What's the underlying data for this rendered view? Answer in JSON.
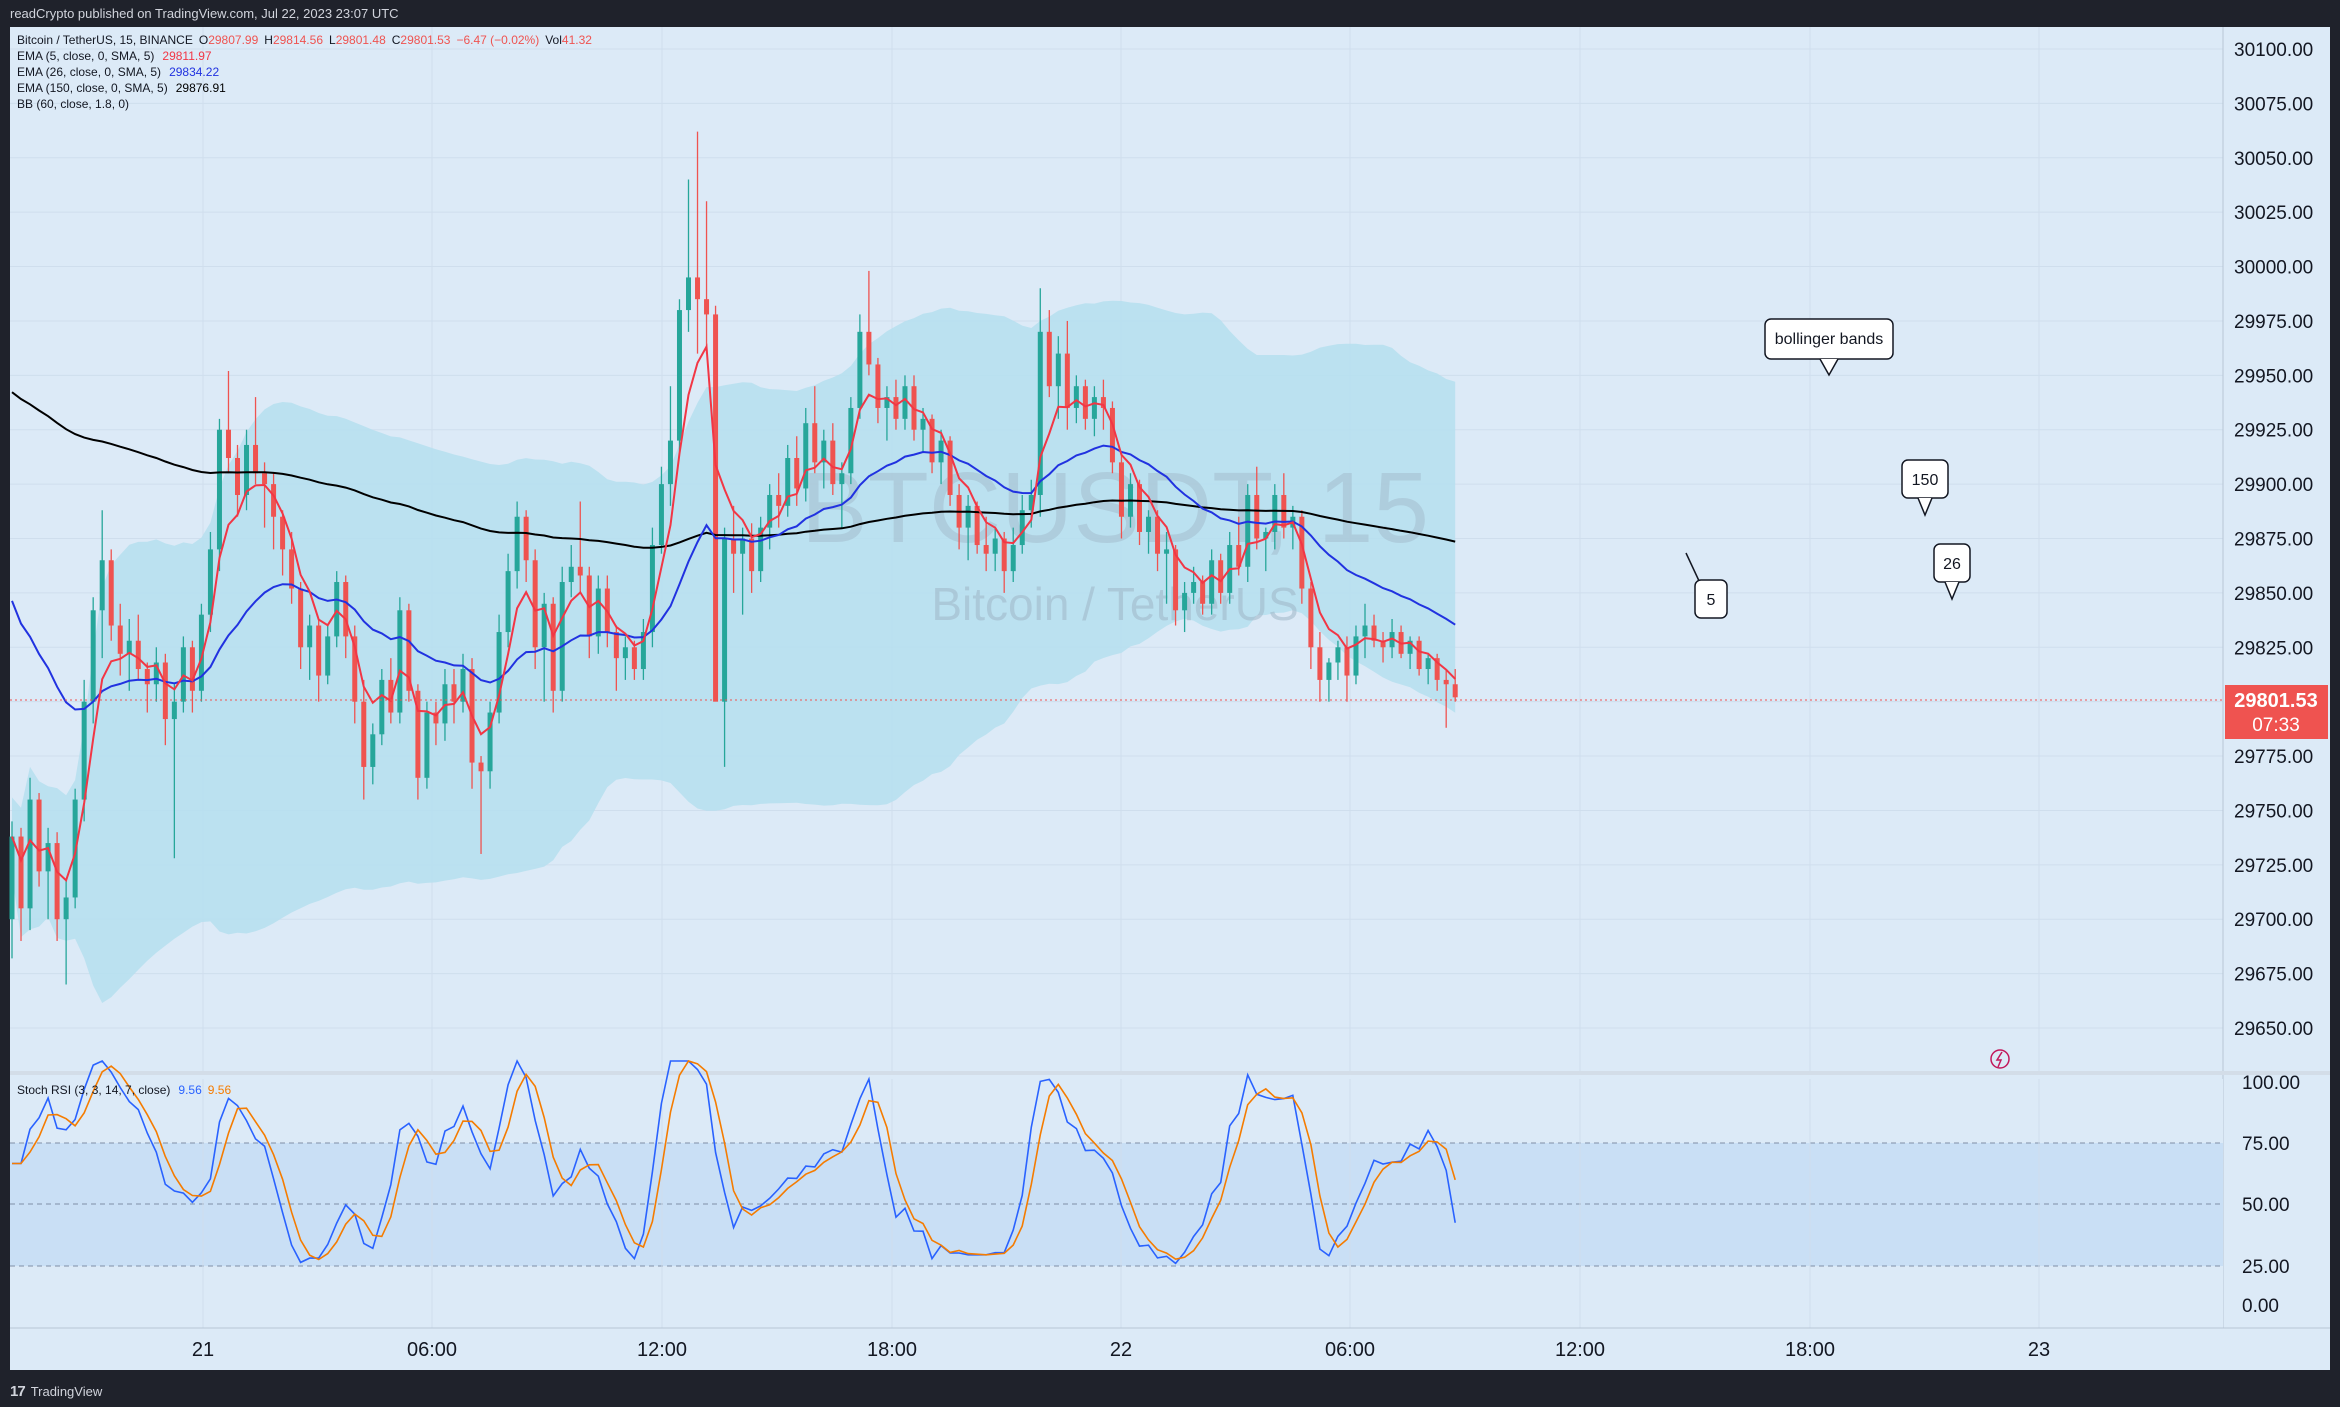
{
  "header": {
    "publisher": "readCrypto published on TradingView.com, Jul 22, 2023 23:07 UTC"
  },
  "footer": {
    "brand": "TradingView"
  },
  "colors": {
    "up": "#26a69a",
    "down": "#ef5350",
    "ema5": "#f23645",
    "ema26": "#2132e0",
    "ema150": "#000000",
    "stoch_k": "#2962ff",
    "stoch_d": "#f57c00",
    "band": "#b5dfee",
    "bg": "#dceaf7"
  },
  "legend": {
    "symbol": "Bitcoin / TetherUS, 15, BINANCE",
    "o_label": "O",
    "o": "29807.99",
    "h_label": "H",
    "h": "29814.56",
    "l_label": "L",
    "l": "29801.48",
    "c_label": "C",
    "c": "29801.53",
    "chg": "−6.47 (−0.02%)",
    "vol_label": "Vol",
    "vol": "41.32",
    "ema5_label": "EMA (5, close, 0, SMA, 5)",
    "ema5": "29811.97",
    "ema26_label": "EMA (26, close, 0, SMA, 5)",
    "ema26": "29834.22",
    "ema150_label": "EMA (150, close, 0, SMA, 5)",
    "ema150": "29876.91",
    "bb_label": "BB (60, close, 1.8, 0)",
    "stoch_label": "Stoch RSI (3, 3, 14, 7, close)",
    "stoch_k": "9.56",
    "stoch_d": "9.56"
  },
  "watermark": {
    "ticker": "BTCUSDT, 15",
    "name": "Bitcoin / TetherUS"
  },
  "annotations": {
    "bb": "bollinger bands",
    "e150": "150",
    "e26": "26",
    "e5": "5"
  },
  "price_tag": {
    "price": "29801.53",
    "countdown": "07:33"
  },
  "chart_data": {
    "type": "candlestick",
    "price_axis": {
      "min": 29650,
      "max": 30100,
      "ticks": [
        "30100.00",
        "30075.00",
        "30050.00",
        "30025.00",
        "30000.00",
        "29975.00",
        "29950.00",
        "29925.00",
        "29900.00",
        "29875.00",
        "29850.00",
        "29825.00",
        "29800.00",
        "29775.00",
        "29750.00",
        "29725.00",
        "29700.00",
        "29675.00",
        "29650.00"
      ]
    },
    "time_axis": {
      "ticks": [
        "21",
        "06:00",
        "12:00",
        "18:00",
        "22",
        "06:00",
        "12:00",
        "18:00",
        "23"
      ]
    },
    "candles_ohlc": [
      [
        29700,
        29745,
        29682,
        29738
      ],
      [
        29738,
        29742,
        29690,
        29705
      ],
      [
        29705,
        29765,
        29695,
        29755
      ],
      [
        29755,
        29758,
        29715,
        29722
      ],
      [
        29722,
        29742,
        29700,
        29735
      ],
      [
        29735,
        29740,
        29690,
        29700
      ],
      [
        29700,
        29718,
        29670,
        29710
      ],
      [
        29710,
        29760,
        29705,
        29755
      ],
      [
        29755,
        29810,
        29745,
        29800
      ],
      [
        29800,
        29848,
        29790,
        29842
      ],
      [
        29842,
        29888,
        29820,
        29865
      ],
      [
        29865,
        29870,
        29828,
        29835
      ],
      [
        29835,
        29845,
        29812,
        29822
      ],
      [
        29822,
        29838,
        29805,
        29828
      ],
      [
        29828,
        29840,
        29810,
        29815
      ],
      [
        29815,
        29818,
        29795,
        29808
      ],
      [
        29808,
        29825,
        29800,
        29818
      ],
      [
        29818,
        29822,
        29780,
        29792
      ],
      [
        29792,
        29808,
        29728,
        29800
      ],
      [
        29800,
        29830,
        29795,
        29825
      ],
      [
        29825,
        29828,
        29795,
        29805
      ],
      [
        29805,
        29845,
        29800,
        29840
      ],
      [
        29840,
        29878,
        29832,
        29870
      ],
      [
        29870,
        29930,
        29860,
        29925
      ],
      [
        29925,
        29952,
        29905,
        29912
      ],
      [
        29912,
        29918,
        29885,
        29895
      ],
      [
        29895,
        29925,
        29888,
        29918
      ],
      [
        29918,
        29940,
        29900,
        29905
      ],
      [
        29905,
        29910,
        29880,
        29900
      ],
      [
        29900,
        29905,
        29870,
        29885
      ],
      [
        29885,
        29888,
        29858,
        29870
      ],
      [
        29870,
        29878,
        29845,
        29852
      ],
      [
        29852,
        29855,
        29815,
        29825
      ],
      [
        29825,
        29840,
        29810,
        29835
      ],
      [
        29835,
        29838,
        29800,
        29812
      ],
      [
        29812,
        29835,
        29808,
        29830
      ],
      [
        29830,
        29860,
        29825,
        29855
      ],
      [
        29855,
        29858,
        29820,
        29830
      ],
      [
        29830,
        29835,
        29790,
        29800
      ],
      [
        29800,
        29810,
        29755,
        29770
      ],
      [
        29770,
        29790,
        29762,
        29785
      ],
      [
        29785,
        29815,
        29780,
        29810
      ],
      [
        29810,
        29820,
        29790,
        29795
      ],
      [
        29795,
        29848,
        29790,
        29842
      ],
      [
        29842,
        29845,
        29800,
        29805
      ],
      [
        29805,
        29808,
        29755,
        29765
      ],
      [
        29765,
        29800,
        29760,
        29795
      ],
      [
        29795,
        29800,
        29780,
        29790
      ],
      [
        29790,
        29815,
        29782,
        29808
      ],
      [
        29808,
        29815,
        29790,
        29800
      ],
      [
        29800,
        29822,
        29795,
        29815
      ],
      [
        29815,
        29820,
        29760,
        29772
      ],
      [
        29772,
        29775,
        29730,
        29768
      ],
      [
        29768,
        29800,
        29760,
        29795
      ],
      [
        29795,
        29840,
        29790,
        29832
      ],
      [
        29832,
        29868,
        29825,
        29860
      ],
      [
        29860,
        29892,
        29852,
        29885
      ],
      [
        29885,
        29888,
        29855,
        29865
      ],
      [
        29865,
        29870,
        29815,
        29825
      ],
      [
        29825,
        29850,
        29800,
        29845
      ],
      [
        29845,
        29848,
        29795,
        29805
      ],
      [
        29805,
        29862,
        29800,
        29855
      ],
      [
        29855,
        29872,
        29848,
        29862
      ],
      [
        29862,
        29892,
        29850,
        29858
      ],
      [
        29858,
        29862,
        29820,
        29830
      ],
      [
        29830,
        29858,
        29822,
        29852
      ],
      [
        29852,
        29858,
        29825,
        29832
      ],
      [
        29832,
        29835,
        29805,
        29820
      ],
      [
        29820,
        29830,
        29810,
        29825
      ],
      [
        29825,
        29828,
        29810,
        29815
      ],
      [
        29815,
        29838,
        29810,
        29832
      ],
      [
        29832,
        29880,
        29825,
        29872
      ],
      [
        29872,
        29908,
        29868,
        29900
      ],
      [
        29900,
        29945,
        29890,
        29920
      ],
      [
        29920,
        29985,
        29915,
        29980
      ],
      [
        29980,
        30040,
        29970,
        29995
      ],
      [
        29995,
        30062,
        29960,
        29985
      ],
      [
        29985,
        30030,
        29960,
        29978
      ],
      [
        29978,
        29982,
        29830,
        29800
      ],
      [
        29800,
        29880,
        29770,
        29875
      ],
      [
        29875,
        29890,
        29850,
        29868
      ],
      [
        29868,
        29880,
        29840,
        29875
      ],
      [
        29875,
        29882,
        29850,
        29860
      ],
      [
        29860,
        29885,
        29855,
        29880
      ],
      [
        29880,
        29900,
        29870,
        29895
      ],
      [
        29895,
        29905,
        29880,
        29890
      ],
      [
        29890,
        29918,
        29885,
        29912
      ],
      [
        29912,
        29922,
        29890,
        29898
      ],
      [
        29898,
        29935,
        29892,
        29928
      ],
      [
        29928,
        29945,
        29905,
        29910
      ],
      [
        29910,
        29925,
        29898,
        29920
      ],
      [
        29920,
        29928,
        29895,
        29900
      ],
      [
        29900,
        29910,
        29880,
        29905
      ],
      [
        29905,
        29940,
        29900,
        29935
      ],
      [
        29935,
        29978,
        29930,
        29970
      ],
      [
        29970,
        29998,
        29950,
        29955
      ],
      [
        29955,
        29958,
        29928,
        29935
      ],
      [
        29935,
        29945,
        29920,
        29940
      ],
      [
        29940,
        29948,
        29925,
        29930
      ],
      [
        29930,
        29950,
        29925,
        29945
      ],
      [
        29945,
        29950,
        29920,
        29925
      ],
      [
        29925,
        29935,
        29915,
        29930
      ],
      [
        29930,
        29932,
        29905,
        29910
      ],
      [
        29910,
        29925,
        29900,
        29920
      ],
      [
        29920,
        29922,
        29890,
        29895
      ],
      [
        29895,
        29900,
        29870,
        29880
      ],
      [
        29880,
        29895,
        29865,
        29890
      ],
      [
        29890,
        29892,
        29868,
        29872
      ],
      [
        29872,
        29885,
        29860,
        29868
      ],
      [
        29868,
        29880,
        29860,
        29875
      ],
      [
        29875,
        29878,
        29850,
        29860
      ],
      [
        29860,
        29880,
        29855,
        29872
      ],
      [
        29872,
        29895,
        29868,
        29888
      ],
      [
        29888,
        29902,
        29880,
        29895
      ],
      [
        29895,
        29990,
        29885,
        29970
      ],
      [
        29970,
        29980,
        29940,
        29945
      ],
      [
        29945,
        29968,
        29930,
        29960
      ],
      [
        29960,
        29975,
        29925,
        29935
      ],
      [
        29935,
        29950,
        29928,
        29945
      ],
      [
        29945,
        29948,
        29925,
        29930
      ],
      [
        29930,
        29945,
        29922,
        29940
      ],
      [
        29940,
        29948,
        29925,
        29935
      ],
      [
        29935,
        29938,
        29905,
        29910
      ],
      [
        29910,
        29915,
        29875,
        29885
      ],
      [
        29885,
        29905,
        29880,
        29900
      ],
      [
        29900,
        29902,
        29872,
        29878
      ],
      [
        29878,
        29888,
        29868,
        29885
      ],
      [
        29885,
        29888,
        29860,
        29868
      ],
      [
        29868,
        29878,
        29845,
        29870
      ],
      [
        29870,
        29872,
        29835,
        29842
      ],
      [
        29842,
        29855,
        29832,
        29850
      ],
      [
        29850,
        29862,
        29845,
        29855
      ],
      [
        29855,
        29858,
        29840,
        29845
      ],
      [
        29845,
        29870,
        29840,
        29865
      ],
      [
        29865,
        29868,
        29845,
        29850
      ],
      [
        29850,
        29878,
        29845,
        29872
      ],
      [
        29872,
        29885,
        29858,
        29862
      ],
      [
        29862,
        29900,
        29855,
        29895
      ],
      [
        29895,
        29908,
        29870,
        29875
      ],
      [
        29875,
        29880,
        29860,
        29878
      ],
      [
        29878,
        29900,
        29870,
        29895
      ],
      [
        29895,
        29905,
        29875,
        29880
      ],
      [
        29880,
        29890,
        29870,
        29885
      ],
      [
        29885,
        29888,
        29845,
        29852
      ],
      [
        29852,
        29855,
        29815,
        29825
      ],
      [
        29825,
        29832,
        29800,
        29810
      ],
      [
        29810,
        29820,
        29800,
        29818
      ],
      [
        29818,
        29828,
        29810,
        29825
      ],
      [
        29825,
        29830,
        29800,
        29812
      ],
      [
        29812,
        29835,
        29808,
        29830
      ],
      [
        29830,
        29845,
        29820,
        29835
      ],
      [
        29835,
        29840,
        29825,
        29828
      ],
      [
        29828,
        29832,
        29818,
        29825
      ],
      [
        29825,
        29838,
        29820,
        29832
      ],
      [
        29832,
        29835,
        29820,
        29822
      ],
      [
        29822,
        29830,
        29815,
        29828
      ],
      [
        29828,
        29830,
        29812,
        29815
      ],
      [
        29815,
        29822,
        29808,
        29820
      ],
      [
        29820,
        29822,
        29805,
        29810
      ],
      [
        29810,
        29815,
        29788,
        29808
      ],
      [
        29808,
        29815,
        29800,
        29802
      ]
    ]
  }
}
